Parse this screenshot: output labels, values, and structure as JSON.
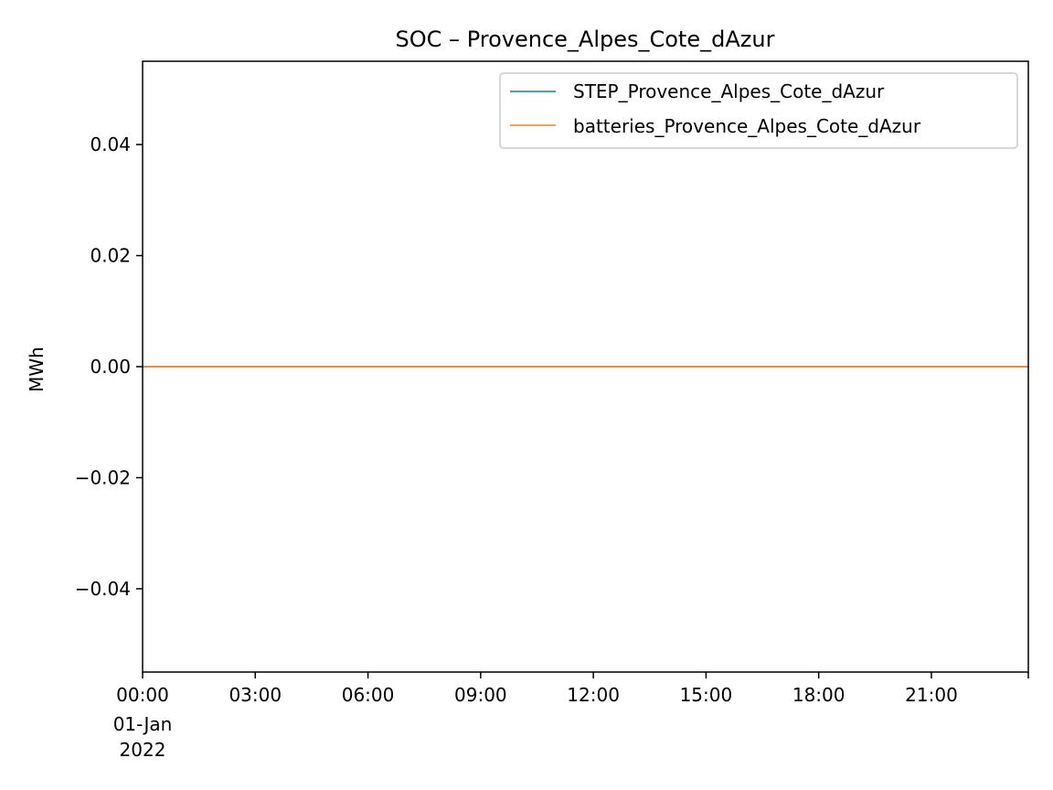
{
  "chart_data": {
    "type": "line",
    "title": "SOC – Provence_Alpes_Cote_dAzur",
    "xlabel": "",
    "ylabel": "MWh",
    "x_tick_labels": [
      "00:00",
      "03:00",
      "06:00",
      "09:00",
      "12:00",
      "15:00",
      "18:00",
      "21:00"
    ],
    "x_tick_sublabels": [
      "01-Jan",
      "2022"
    ],
    "x_range_hours": [
      0,
      23.58
    ],
    "y_ticks": [
      0.04,
      0.02,
      0.0,
      -0.02,
      -0.04
    ],
    "y_tick_labels": [
      "0.04",
      "0.02",
      "0.00",
      "−0.02",
      "−0.04"
    ],
    "ylim": [
      -0.055,
      0.055
    ],
    "grid": false,
    "legend_position": "top-right",
    "series": [
      {
        "name": "STEP_Provence_Alpes_Cote_dAzur",
        "color": "#1f77b4",
        "x_hours": [
          0,
          23.58
        ],
        "values": [
          0,
          0
        ]
      },
      {
        "name": "batteries_Provence_Alpes_Cote_dAzur",
        "color": "#ff7f0e",
        "x_hours": [
          0,
          23.58
        ],
        "values": [
          0,
          0
        ]
      }
    ]
  }
}
